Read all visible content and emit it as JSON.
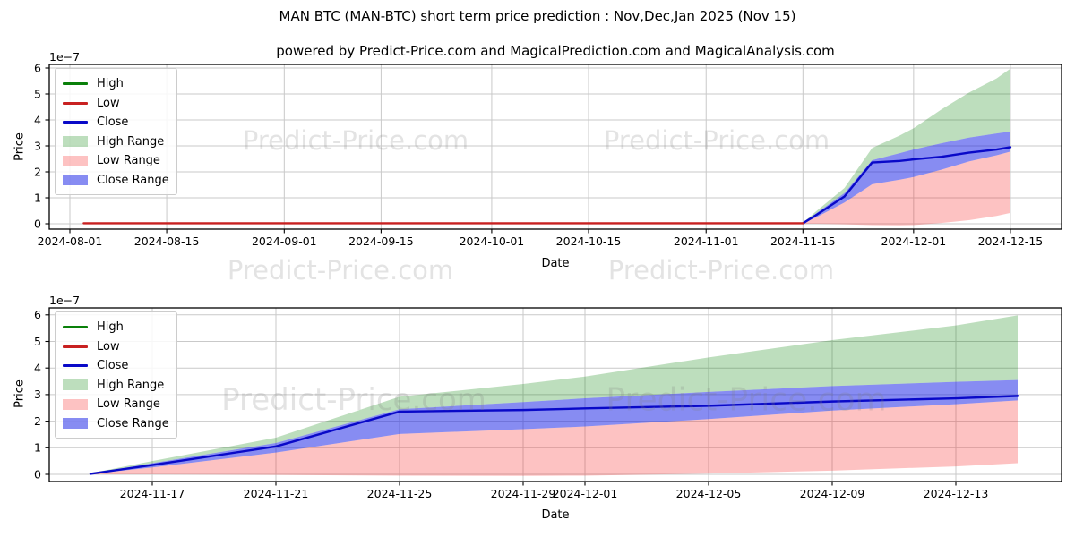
{
  "header": {
    "title": "MAN BTC (MAN-BTC) short term price prediction : Nov,Dec,Jan 2025 (Nov 15)",
    "subtitle": "powered by Predict-Price.com and MagicalPrediction.com and MagicalAnalysis.com"
  },
  "watermark": {
    "text": "Predict-Price.com",
    "color": "#808080",
    "opacity": 0.22
  },
  "legend": {
    "items": [
      {
        "label": "High",
        "swatch": "line",
        "color": "#0a800a"
      },
      {
        "label": "Low",
        "swatch": "line",
        "color": "#c82121"
      },
      {
        "label": "Close",
        "swatch": "line",
        "color": "#0909c8"
      },
      {
        "label": "High Range",
        "swatch": "patch",
        "color": "rgba(0,128,0,0.26)"
      },
      {
        "label": "Low Range",
        "swatch": "patch",
        "color": "rgba(248,30,30,0.27)"
      },
      {
        "label": "Close Range",
        "swatch": "patch",
        "color": "rgba(15,25,230,0.5)"
      }
    ]
  },
  "chart_data": [
    {
      "type": "line",
      "name": "overview-chart",
      "title": "powered by Predict-Price.com and MagicalPrediction.com and MagicalAnalysis.com",
      "xlabel": "Date",
      "ylabel": "Price",
      "offset_label": "1e−7",
      "unit_multiplier": "1e-7",
      "grid": true,
      "legend_position": "upper left",
      "ylim": [
        -0.2,
        6.15
      ],
      "yticks": [
        0,
        1,
        2,
        3,
        4,
        5,
        6
      ],
      "xticks": [
        {
          "label": "2024-08-01",
          "d": -106
        },
        {
          "label": "2024-08-15",
          "d": -92
        },
        {
          "label": "2024-09-01",
          "d": -75
        },
        {
          "label": "2024-09-15",
          "d": -61
        },
        {
          "label": "2024-10-01",
          "d": -45
        },
        {
          "label": "2024-10-15",
          "d": -31
        },
        {
          "label": "2024-11-01",
          "d": -14
        },
        {
          "label": "2024-11-15",
          "d": 0
        },
        {
          "label": "2024-12-01",
          "d": 16
        },
        {
          "label": "2024-12-15",
          "d": 30
        }
      ],
      "history": {
        "name": "Low",
        "color": "#c82121",
        "days": [
          -104,
          0
        ],
        "values": [
          0.02,
          0.02
        ]
      },
      "prediction_dates": [
        "2024-11-15",
        "2024-11-17",
        "2024-11-21",
        "2024-11-25",
        "2024-11-29",
        "2024-12-01",
        "2024-12-05",
        "2024-12-09",
        "2024-12-13",
        "2024-12-15"
      ],
      "prediction_days": [
        0,
        2,
        6,
        10,
        14,
        16,
        20,
        24,
        28,
        30
      ],
      "series": [
        {
          "name": "High Range",
          "type": "band",
          "color": "rgba(0,128,0,0.26)",
          "upper": [
            0.04,
            0.5,
            1.38,
            2.92,
            3.4,
            3.68,
            4.4,
            5.05,
            5.6,
            5.98
          ],
          "lower": [
            0.03,
            0.42,
            1.18,
            2.45,
            2.72,
            2.86,
            3.1,
            3.32,
            3.48,
            3.55
          ]
        },
        {
          "name": "Low Range",
          "type": "band",
          "color": "rgba(248,30,30,0.27)",
          "upper": [
            0.01,
            0.26,
            0.82,
            1.52,
            1.7,
            1.8,
            2.08,
            2.4,
            2.64,
            2.78
          ],
          "lower": [
            0.0,
            0.0,
            -0.02,
            -0.05,
            -0.06,
            -0.05,
            0.03,
            0.14,
            0.3,
            0.42
          ]
        },
        {
          "name": "Close Range",
          "type": "band",
          "color": "rgba(15,25,230,0.5)",
          "upper": [
            0.03,
            0.42,
            1.18,
            2.45,
            2.72,
            2.86,
            3.1,
            3.32,
            3.48,
            3.55
          ],
          "lower": [
            0.01,
            0.26,
            0.82,
            1.52,
            1.7,
            1.8,
            2.08,
            2.4,
            2.64,
            2.78
          ]
        },
        {
          "name": "Close",
          "type": "line",
          "color": "#0909c8",
          "values": [
            0.02,
            0.35,
            1.05,
            2.36,
            2.42,
            2.48,
            2.58,
            2.74,
            2.86,
            2.95
          ]
        }
      ]
    },
    {
      "type": "line",
      "name": "prediction-zoom-chart",
      "title": "",
      "xlabel": "Date",
      "ylabel": "Price",
      "offset_label": "1e−7",
      "unit_multiplier": "1e-7",
      "grid": true,
      "legend_position": "upper left",
      "ylim": [
        -0.27,
        6.26
      ],
      "yticks": [
        0,
        1,
        2,
        3,
        4,
        5,
        6
      ],
      "xticks": [
        {
          "label": "2024-11-17",
          "d": 2
        },
        {
          "label": "2024-11-21",
          "d": 6
        },
        {
          "label": "2024-11-25",
          "d": 10
        },
        {
          "label": "2024-11-29",
          "d": 14
        },
        {
          "label": "2024-12-01",
          "d": 16
        },
        {
          "label": "2024-12-05",
          "d": 20
        },
        {
          "label": "2024-12-09",
          "d": 24
        },
        {
          "label": "2024-12-13",
          "d": 28
        }
      ],
      "prediction_dates": [
        "2024-11-15",
        "2024-11-17",
        "2024-11-21",
        "2024-11-25",
        "2024-11-29",
        "2024-12-01",
        "2024-12-05",
        "2024-12-09",
        "2024-12-13",
        "2024-12-15"
      ],
      "prediction_days": [
        0,
        2,
        6,
        10,
        14,
        16,
        20,
        24,
        28,
        30
      ],
      "series": [
        {
          "name": "High Range",
          "type": "band",
          "color": "rgba(0,128,0,0.26)",
          "upper": [
            0.04,
            0.5,
            1.38,
            2.92,
            3.4,
            3.68,
            4.4,
            5.05,
            5.6,
            5.98
          ],
          "lower": [
            0.03,
            0.42,
            1.18,
            2.45,
            2.72,
            2.86,
            3.1,
            3.32,
            3.48,
            3.55
          ]
        },
        {
          "name": "Low Range",
          "type": "band",
          "color": "rgba(248,30,30,0.27)",
          "upper": [
            0.01,
            0.26,
            0.82,
            1.52,
            1.7,
            1.8,
            2.08,
            2.4,
            2.64,
            2.78
          ],
          "lower": [
            0.0,
            0.0,
            -0.02,
            -0.05,
            -0.06,
            -0.05,
            0.03,
            0.14,
            0.3,
            0.42
          ]
        },
        {
          "name": "Close Range",
          "type": "band",
          "color": "rgba(15,25,230,0.5)",
          "upper": [
            0.03,
            0.42,
            1.18,
            2.45,
            2.72,
            2.86,
            3.1,
            3.32,
            3.48,
            3.55
          ],
          "lower": [
            0.01,
            0.26,
            0.82,
            1.52,
            1.7,
            1.8,
            2.08,
            2.4,
            2.64,
            2.78
          ]
        },
        {
          "name": "Close",
          "type": "line",
          "color": "#0909c8",
          "values": [
            0.02,
            0.35,
            1.05,
            2.36,
            2.42,
            2.48,
            2.58,
            2.74,
            2.86,
            2.95
          ]
        }
      ]
    }
  ]
}
